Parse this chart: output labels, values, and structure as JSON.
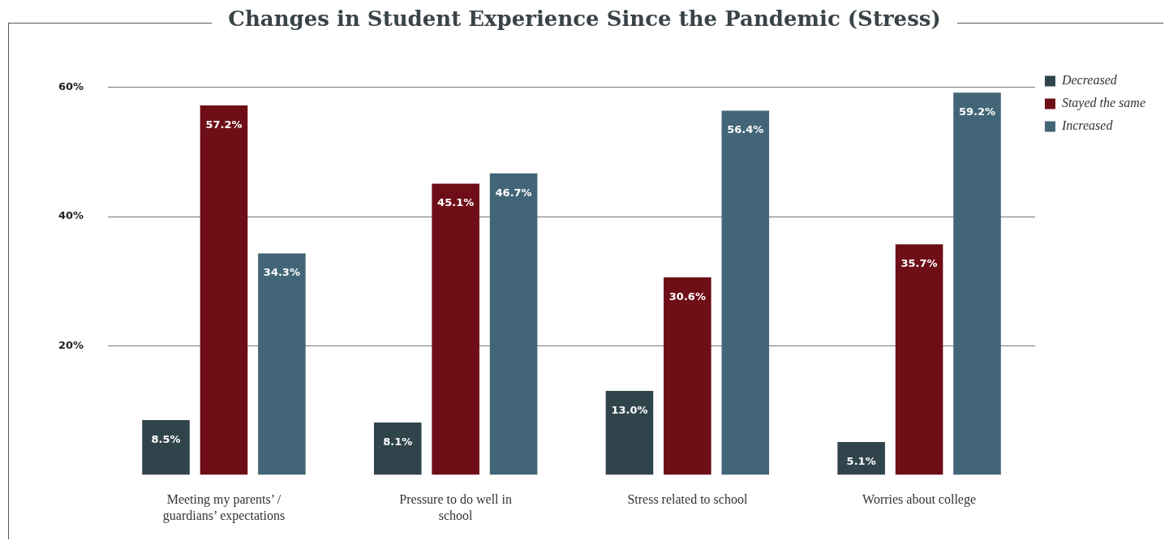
{
  "chart_data": {
    "type": "bar",
    "title": "Changes in Student Experience Since the Pandemic (Stress)",
    "categories": [
      "Meeting my parents’ / guardians’ expectations",
      "Pressure to do well in school",
      "Stress related to school",
      "Worries about college"
    ],
    "series": [
      {
        "name": "Decreased",
        "color": "#30444b",
        "values": [
          8.5,
          8.1,
          13.0,
          5.1
        ],
        "value_labels": [
          "8.5%",
          "8.1%",
          "13.0%",
          "5.1%"
        ]
      },
      {
        "name": "Stayed the same",
        "color": "#6e0e17",
        "values": [
          57.2,
          45.1,
          30.6,
          35.7
        ],
        "value_labels": [
          "57.2%",
          "45.1%",
          "30.6%",
          "35.7%"
        ]
      },
      {
        "name": "Increased",
        "color": "#426677",
        "values": [
          34.3,
          46.7,
          56.4,
          59.2
        ],
        "value_labels": [
          "34.3%",
          "46.7%",
          "56.4%",
          "59.2%"
        ]
      }
    ],
    "ylim": [
      0,
      60
    ],
    "yticks": [
      {
        "value": 20,
        "label": "20%"
      },
      {
        "value": 40,
        "label": "40%"
      },
      {
        "value": 60,
        "label": "60%"
      }
    ],
    "grid": "y",
    "legend": "top right"
  }
}
